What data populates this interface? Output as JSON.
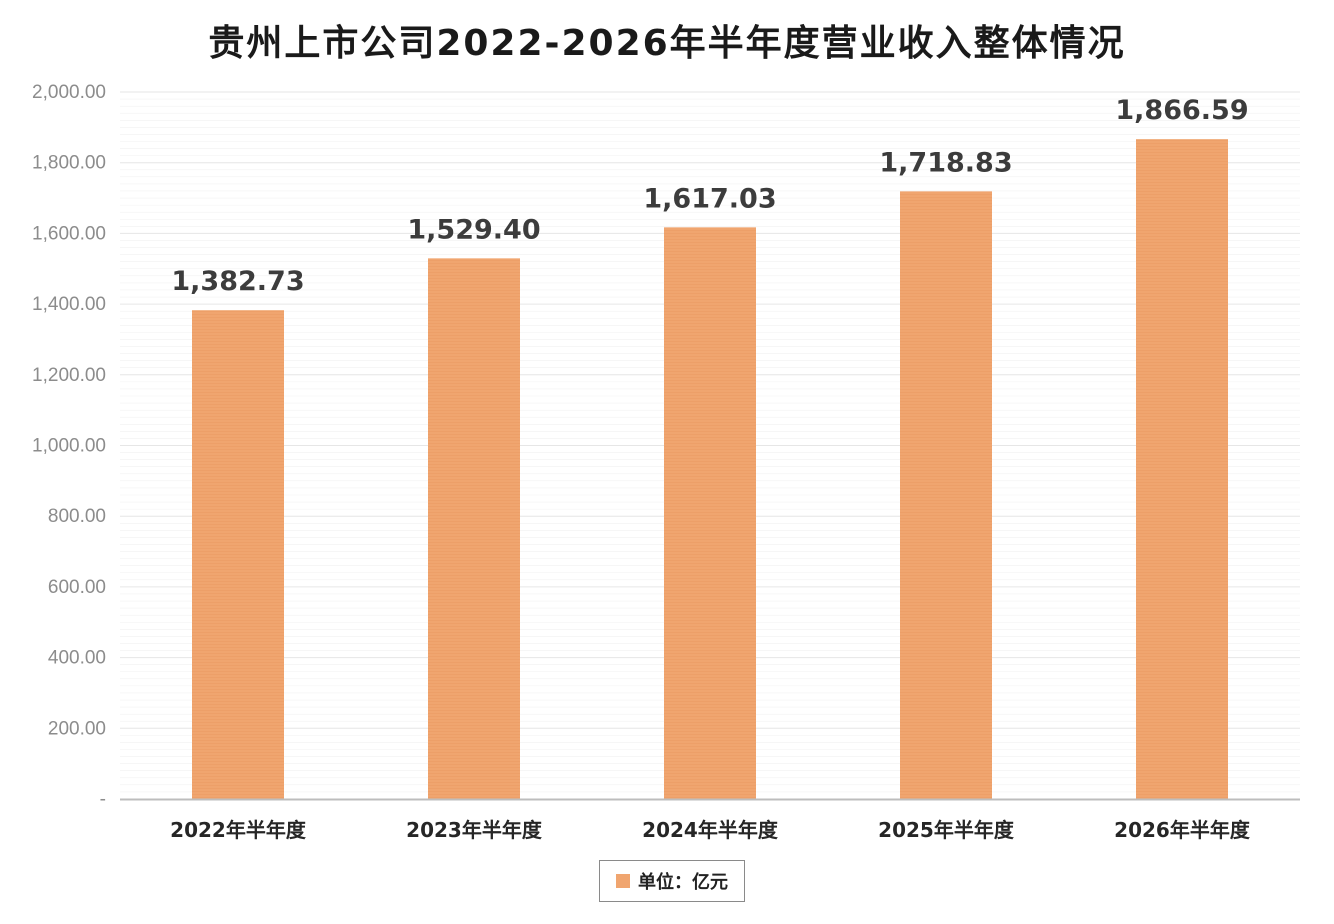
{
  "title": "贵州上市公司2022-2026年半年度营业收入整体情况",
  "legend": {
    "label": "单位：亿元"
  },
  "colors": {
    "bar": "#f0a56f",
    "bar_stripe": "#eb9a62",
    "grid": "#e6e6e6",
    "axis_line": "#bdbdbd",
    "tick_text": "#8c8c8c",
    "category_text": "#262626",
    "value_label_text": "#3c3c3c"
  },
  "chart_data": {
    "type": "bar",
    "title": "贵州上市公司2022-2026年半年度营业收入整体情况",
    "categories": [
      "2022年半年度",
      "2023年半年度",
      "2024年半年度",
      "2025年半年度",
      "2026年半年度"
    ],
    "series": [
      {
        "name": "单位：亿元",
        "values": [
          1382.73,
          1529.4,
          1617.03,
          1718.83,
          1866.59
        ],
        "value_labels": [
          "1,382.73",
          "1,529.40",
          "1,617.03",
          "1,718.83",
          "1,866.59"
        ]
      }
    ],
    "ylim": [
      0,
      2000
    ],
    "yticks": [
      0,
      200,
      400,
      600,
      800,
      1000,
      1200,
      1400,
      1600,
      1800,
      2000
    ],
    "ytick_labels": [
      "-",
      "200.00",
      "400.00",
      "600.00",
      "800.00",
      "1,000.00",
      "1,200.00",
      "1,400.00",
      "1,600.00",
      "1,800.00",
      "2,000.00"
    ],
    "xlabel": "",
    "ylabel": "",
    "grid": true,
    "legend_position": "bottom-center"
  }
}
